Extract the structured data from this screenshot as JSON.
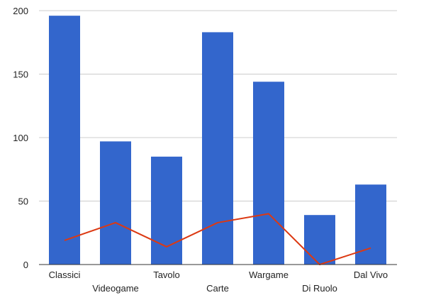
{
  "chart_data": {
    "type": "bar",
    "title": "",
    "xlabel": "",
    "ylabel": "",
    "categories": [
      "Classici",
      "Videogame",
      "Tavolo",
      "Carte",
      "Wargame",
      "Di Ruolo",
      "Dal Vivo"
    ],
    "series": [
      {
        "type": "bar",
        "values": [
          196,
          97,
          85,
          183,
          144,
          39,
          63
        ],
        "color": "#3366cc"
      },
      {
        "type": "line",
        "values": [
          19,
          33,
          14,
          33,
          40,
          0,
          13
        ],
        "color": "#dc3912"
      }
    ],
    "ylim": [
      0,
      200
    ],
    "yticks": [
      0,
      50,
      100,
      150,
      200
    ],
    "grid": true,
    "legend": "none"
  }
}
